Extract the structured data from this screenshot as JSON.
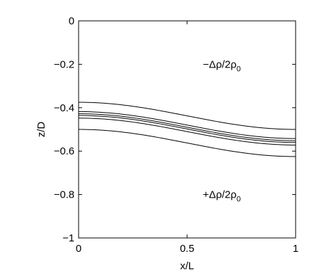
{
  "chart_data": {
    "type": "line",
    "title": "",
    "xlabel": "x/L",
    "ylabel": "z/D",
    "xlim": [
      0,
      1
    ],
    "ylim": [
      -1,
      0
    ],
    "x_ticks": [
      "0",
      "0.5",
      "1"
    ],
    "y_ticks": [
      "0",
      "−0.2",
      "−0.4",
      "−0.6",
      "−0.8",
      "−1"
    ],
    "grid": false,
    "legend": "none",
    "annotations": [
      {
        "text": "−Δρ/2ρ",
        "sub": "0",
        "x": 0.66,
        "y": -0.2
      },
      {
        "text": "+Δρ/2ρ",
        "sub": "0",
        "x": 0.66,
        "y": -0.8
      }
    ],
    "series": [
      {
        "x": [
          0,
          0.25,
          0.5,
          0.75,
          1
        ],
        "values": [
          -0.375,
          -0.39,
          -0.437,
          -0.485,
          -0.5
        ]
      },
      {
        "x": [
          0,
          0.25,
          0.5,
          0.75,
          1
        ],
        "values": [
          -0.418,
          -0.433,
          -0.48,
          -0.527,
          -0.542
        ]
      },
      {
        "x": [
          0,
          0.25,
          0.5,
          0.75,
          1
        ],
        "values": [
          -0.428,
          -0.443,
          -0.49,
          -0.537,
          -0.552
        ]
      },
      {
        "x": [
          0,
          0.25,
          0.5,
          0.75,
          1
        ],
        "values": [
          -0.436,
          -0.451,
          -0.498,
          -0.545,
          -0.56
        ]
      },
      {
        "x": [
          0,
          0.25,
          0.5,
          0.75,
          1
        ],
        "values": [
          -0.448,
          -0.463,
          -0.51,
          -0.557,
          -0.572
        ]
      },
      {
        "x": [
          0,
          0.25,
          0.5,
          0.75,
          1
        ],
        "values": [
          -0.5,
          -0.515,
          -0.562,
          -0.609,
          -0.625
        ]
      }
    ]
  }
}
